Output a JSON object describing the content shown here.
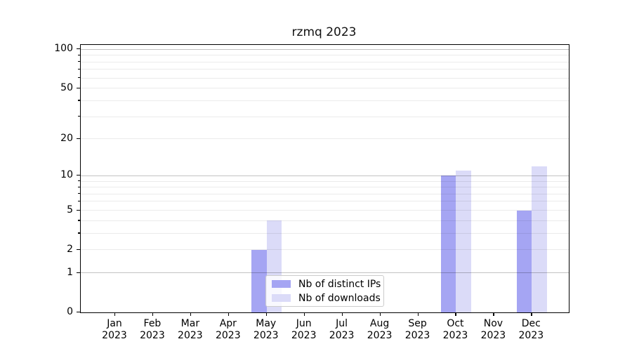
{
  "title": "rzmq 2023",
  "legend": {
    "items": [
      {
        "label": "Nb of distinct IPs",
        "color": "#a5a5f3"
      },
      {
        "label": "Nb of downloads",
        "color": "#dbdbf8"
      }
    ],
    "position": "lower center"
  },
  "chart_data": {
    "type": "bar",
    "title": "rzmq 2023",
    "months": [
      "Jan",
      "Feb",
      "Mar",
      "Apr",
      "May",
      "Jun",
      "Jul",
      "Aug",
      "Sep",
      "Oct",
      "Nov",
      "Dec"
    ],
    "year": "2023",
    "series": [
      {
        "name": "Nb of distinct IPs",
        "color": "#a5a5f3",
        "values": [
          0,
          0,
          0,
          0,
          2,
          0,
          0,
          0,
          0,
          10,
          0,
          5
        ]
      },
      {
        "name": "Nb of downloads",
        "color": "#dbdbf8",
        "values": [
          0,
          0,
          0,
          0,
          4,
          0,
          0,
          0,
          0,
          11,
          0,
          12
        ]
      }
    ],
    "yscale": "log1p",
    "ylim": [
      0,
      108
    ],
    "y_labeled_ticks": [
      0,
      1,
      2,
      5,
      10,
      20,
      50,
      100
    ],
    "y_major_gridlines": [
      1,
      10,
      100
    ],
    "y_minor_gridlines": [
      2,
      3,
      4,
      5,
      6,
      7,
      8,
      9,
      20,
      30,
      40,
      50,
      60,
      70,
      80,
      90
    ],
    "grid": "on",
    "legend_position": "lower center"
  }
}
